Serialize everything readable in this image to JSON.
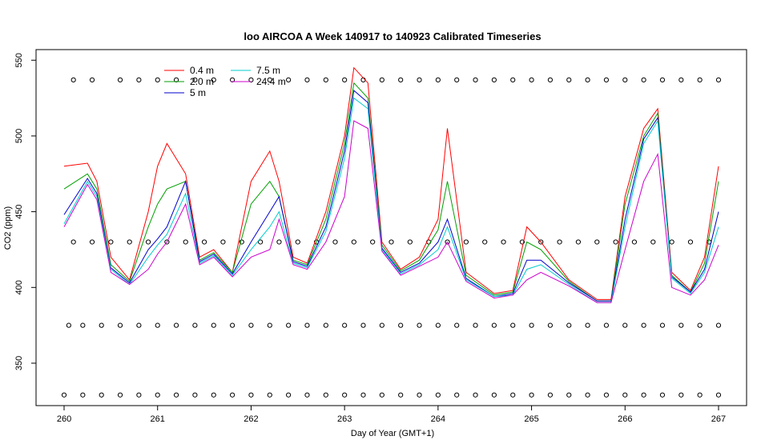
{
  "chart_data": {
    "type": "line",
    "title": "loo AIRCOA A  Week 140917 to 140923  Calibrated Timeseries",
    "xlabel": "Day of Year (GMT+1)",
    "ylabel": "CO2 (ppm)",
    "xlim": [
      259.7,
      267.3
    ],
    "ylim": [
      322,
      557
    ],
    "x_ticks": [
      260,
      261,
      262,
      263,
      264,
      265,
      266,
      267
    ],
    "x_tick_labels": [
      "260",
      "261",
      "262",
      "263",
      "264",
      "265",
      "266",
      "267"
    ],
    "y_ticks": [
      350,
      400,
      450,
      500,
      550
    ],
    "y_tick_labels": [
      "350",
      "400",
      "450",
      "500",
      "550"
    ],
    "grid": false,
    "legend_placement": "top-left",
    "series": [
      {
        "name": "0.4 m",
        "color": "#ff0000",
        "x": [
          260.0,
          260.25,
          260.35,
          260.5,
          260.7,
          260.9,
          261.0,
          261.1,
          261.3,
          261.45,
          261.6,
          261.8,
          262.0,
          262.2,
          262.3,
          262.45,
          262.6,
          262.8,
          263.0,
          263.1,
          263.25,
          263.4,
          263.6,
          263.8,
          264.0,
          264.1,
          264.3,
          264.6,
          264.8,
          264.95,
          265.1,
          265.4,
          265.7,
          265.85,
          266.0,
          266.2,
          266.35,
          266.5,
          266.7,
          266.85,
          267.0
        ],
        "y": [
          480,
          482,
          470,
          420,
          405,
          450,
          480,
          495,
          475,
          420,
          425,
          410,
          470,
          490,
          470,
          420,
          416,
          450,
          500,
          545,
          535,
          430,
          412,
          420,
          445,
          505,
          410,
          396,
          398,
          440,
          430,
          405,
          392,
          392,
          460,
          505,
          518,
          410,
          398,
          420,
          480
        ]
      },
      {
        "name": "2.0 m",
        "color": "#00a000",
        "x": [
          260.0,
          260.25,
          260.35,
          260.5,
          260.7,
          260.9,
          261.0,
          261.1,
          261.3,
          261.45,
          261.6,
          261.8,
          262.0,
          262.2,
          262.3,
          262.45,
          262.6,
          262.8,
          263.0,
          263.1,
          263.25,
          263.4,
          263.6,
          263.8,
          264.0,
          264.1,
          264.3,
          264.6,
          264.8,
          264.95,
          265.1,
          265.4,
          265.7,
          265.85,
          266.0,
          266.2,
          266.35,
          266.5,
          266.7,
          266.85,
          267.0
        ],
        "y": [
          465,
          475,
          465,
          415,
          404,
          440,
          455,
          465,
          470,
          418,
          423,
          410,
          455,
          470,
          460,
          418,
          415,
          445,
          495,
          535,
          525,
          428,
          411,
          418,
          438,
          470,
          408,
          395,
          397,
          430,
          425,
          404,
          391,
          391,
          455,
          500,
          515,
          408,
          397,
          416,
          470
        ]
      },
      {
        "name": "5 m",
        "color": "#0000cc",
        "x": [
          260.0,
          260.25,
          260.35,
          260.5,
          260.7,
          260.9,
          261.0,
          261.1,
          261.3,
          261.45,
          261.6,
          261.8,
          262.0,
          262.2,
          262.3,
          262.45,
          262.6,
          262.8,
          263.0,
          263.1,
          263.25,
          263.4,
          263.6,
          263.8,
          264.0,
          264.1,
          264.3,
          264.6,
          264.8,
          264.95,
          265.1,
          265.4,
          265.7,
          265.85,
          266.0,
          266.2,
          266.35,
          266.5,
          266.7,
          266.85,
          267.0
        ],
        "y": [
          448,
          472,
          462,
          413,
          403,
          425,
          432,
          440,
          470,
          417,
          422,
          409,
          430,
          450,
          460,
          417,
          414,
          440,
          490,
          530,
          522,
          426,
          410,
          416,
          430,
          445,
          406,
          394,
          396,
          418,
          418,
          403,
          391,
          391,
          445,
          498,
          512,
          407,
          397,
          412,
          450
        ]
      },
      {
        "name": "7.5 m",
        "color": "#00cccc",
        "x": [
          260.0,
          260.25,
          260.35,
          260.5,
          260.7,
          260.9,
          261.0,
          261.1,
          261.3,
          261.45,
          261.6,
          261.8,
          262.0,
          262.2,
          262.3,
          262.45,
          262.6,
          262.8,
          263.0,
          263.1,
          263.25,
          263.4,
          263.6,
          263.8,
          264.0,
          264.1,
          264.3,
          264.6,
          264.8,
          264.95,
          265.1,
          265.4,
          265.7,
          265.85,
          266.0,
          266.2,
          266.35,
          266.5,
          266.7,
          266.85,
          267.0
        ],
        "y": [
          442,
          470,
          460,
          412,
          402,
          420,
          428,
          435,
          462,
          416,
          421,
          408,
          425,
          440,
          450,
          416,
          413,
          437,
          485,
          525,
          518,
          425,
          409,
          415,
          425,
          440,
          405,
          394,
          395,
          412,
          415,
          402,
          390,
          390,
          440,
          495,
          510,
          406,
          396,
          410,
          440
        ]
      },
      {
        "name": "24.4 m",
        "color": "#cc00cc",
        "x": [
          260.0,
          260.25,
          260.35,
          260.5,
          260.7,
          260.9,
          261.0,
          261.1,
          261.3,
          261.45,
          261.6,
          261.8,
          262.0,
          262.2,
          262.3,
          262.45,
          262.6,
          262.8,
          263.0,
          263.1,
          263.25,
          263.4,
          263.6,
          263.8,
          264.0,
          264.1,
          264.3,
          264.6,
          264.8,
          264.95,
          265.1,
          265.4,
          265.7,
          265.85,
          266.0,
          266.2,
          266.35,
          266.5,
          266.7,
          266.85,
          267.0
        ],
        "y": [
          440,
          468,
          458,
          410,
          402,
          412,
          422,
          430,
          455,
          415,
          420,
          407,
          420,
          425,
          445,
          415,
          412,
          430,
          460,
          510,
          505,
          424,
          408,
          414,
          420,
          430,
          404,
          393,
          395,
          405,
          410,
          401,
          390,
          390,
          425,
          470,
          488,
          400,
          395,
          405,
          428
        ]
      }
    ],
    "calibration_points": [
      {
        "y": 537,
        "x": [
          260.1,
          260.3,
          260.6,
          260.8,
          261.0,
          261.2,
          261.4,
          261.6,
          261.8,
          262.0,
          262.2,
          262.4,
          262.6,
          262.8,
          263.0,
          263.2,
          263.4,
          263.6,
          263.8,
          264.0,
          264.2,
          264.4,
          264.6,
          264.8,
          265.0,
          265.2,
          265.4,
          265.6,
          265.8,
          266.0,
          266.2,
          266.4,
          266.6,
          266.8,
          267.0
        ]
      },
      {
        "y": 430,
        "x": [
          260.1,
          260.3,
          260.5,
          260.7,
          260.9,
          261.1,
          261.3,
          261.5,
          261.7,
          261.9,
          262.1,
          262.3,
          262.5,
          262.7,
          262.9,
          263.1,
          263.3,
          263.5,
          263.7,
          263.9,
          264.1,
          264.3,
          264.5,
          264.7,
          264.9,
          265.1,
          265.3,
          265.5,
          265.7,
          265.9,
          266.1,
          266.3,
          266.5,
          266.7,
          266.9
        ]
      },
      {
        "y": 375,
        "x": [
          260.05,
          260.2,
          260.4,
          260.6,
          260.8,
          261.0,
          261.2,
          261.4,
          261.6,
          261.8,
          262.0,
          262.2,
          262.4,
          262.6,
          262.8,
          263.0,
          263.2,
          263.4,
          263.6,
          263.8,
          264.0,
          264.2,
          264.4,
          264.6,
          264.8,
          265.0,
          265.2,
          265.4,
          265.6,
          265.8,
          266.0,
          266.2,
          266.4,
          266.6,
          266.8,
          267.0
        ]
      },
      {
        "y": 329,
        "x": [
          260.0,
          260.2,
          260.4,
          260.6,
          260.8,
          261.0,
          261.2,
          261.4,
          261.6,
          261.8,
          262.0,
          262.2,
          262.4,
          262.6,
          262.8,
          263.0,
          263.2,
          263.4,
          263.6,
          263.8,
          264.0,
          264.2,
          264.4,
          264.6,
          264.8,
          265.0,
          265.2,
          265.4,
          265.6,
          265.8,
          266.0,
          266.2,
          266.4,
          266.6,
          266.8,
          267.0
        ]
      }
    ],
    "legend": [
      {
        "label": "0.4 m",
        "color": "#ff0000"
      },
      {
        "label": "2.0 m",
        "color": "#00a000"
      },
      {
        "label": "5 m",
        "color": "#0000cc"
      },
      {
        "label": "7.5 m",
        "color": "#00cccc"
      },
      {
        "label": "24.4 m",
        "color": "#cc00cc"
      }
    ]
  }
}
